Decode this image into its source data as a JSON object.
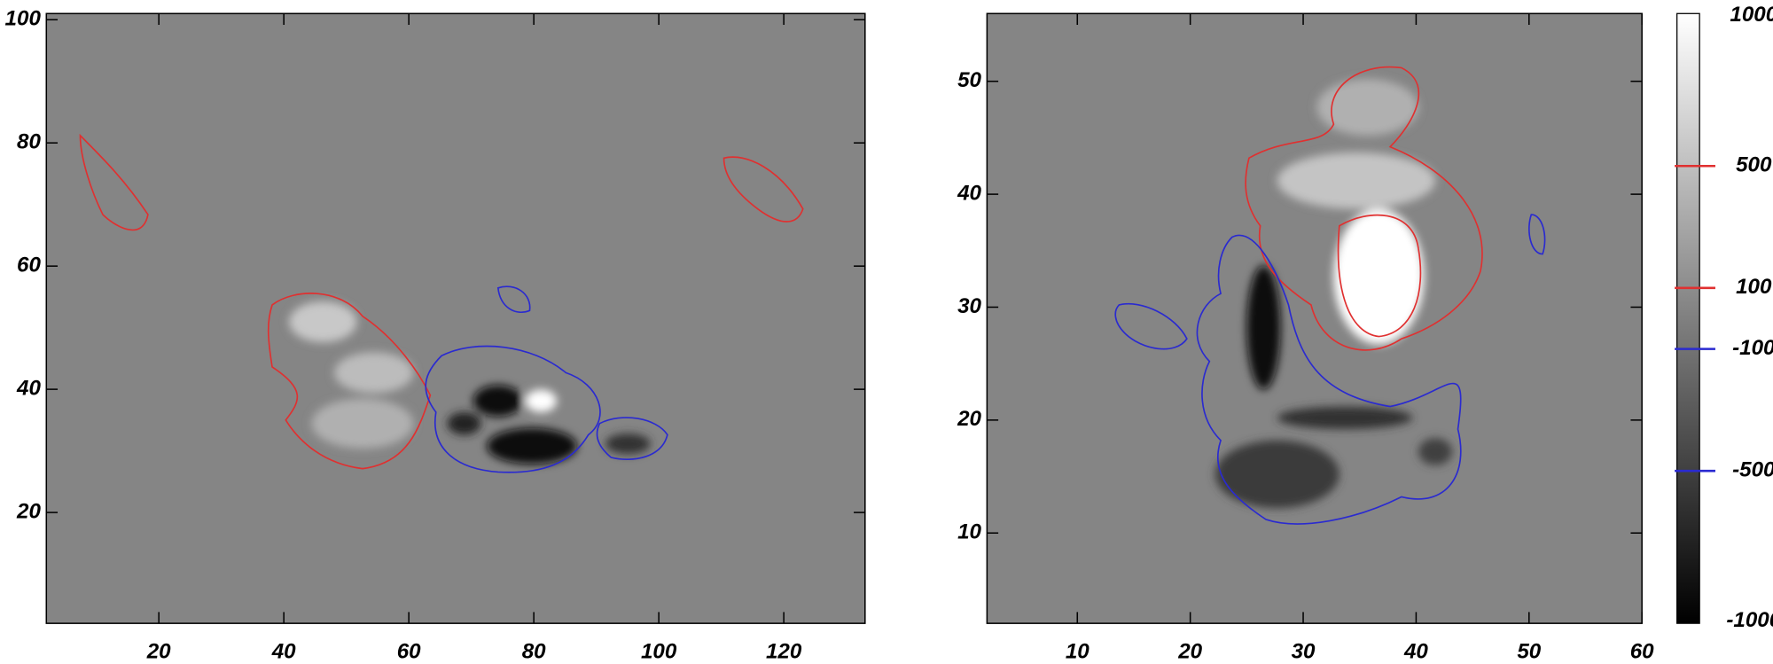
{
  "chart_data": [
    {
      "type": "image",
      "xlim": [
        2,
        133
      ],
      "ylim": [
        2,
        101
      ],
      "xticks": [
        20,
        40,
        60,
        80,
        100,
        120
      ],
      "yticks": [
        20,
        40,
        60,
        80,
        100
      ]
    },
    {
      "type": "image",
      "xlim": [
        2,
        60
      ],
      "ylim": [
        2,
        56
      ],
      "xticks": [
        10,
        20,
        30,
        40,
        50,
        60
      ],
      "yticks": [
        10,
        20,
        30,
        40,
        50
      ]
    },
    {
      "type": "colorbar",
      "zlim": [
        -1000,
        1000
      ],
      "zticks": [
        1000,
        500,
        100,
        -100,
        -500,
        -1000
      ],
      "positive_color": "#e03030",
      "negative_color": "#2a2ad0"
    }
  ]
}
